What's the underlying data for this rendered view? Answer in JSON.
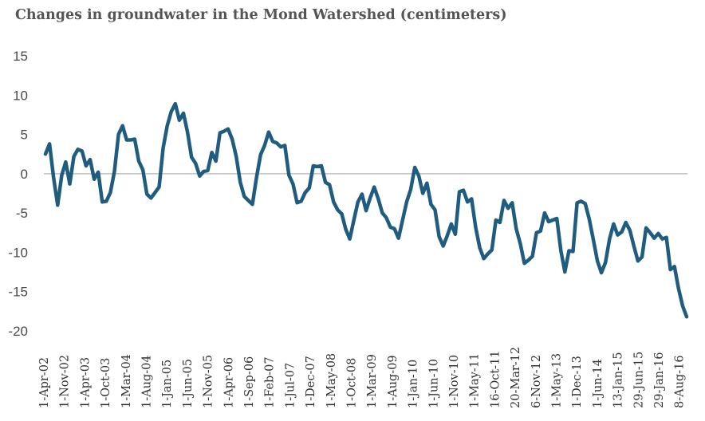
{
  "chart_data": {
    "type": "line",
    "title": "Changes in groundwater in the Mond Watershed (centimeters)",
    "xlabel": "",
    "ylabel": "",
    "ylim": [
      -20,
      15
    ],
    "yticks": [
      15,
      10,
      5,
      0,
      -5,
      -10,
      -15,
      -20
    ],
    "grid": false,
    "legend": "none",
    "colors": {
      "line": "#1f5c7f",
      "zero_line": "#bfbfbf",
      "axis_text": "#4a4a4a",
      "title": "#555555"
    },
    "x_tick_labels": [
      "1-Apr-02",
      "1-Nov-02",
      "1-Apr-03",
      "1-Oct-03",
      "1-Mar-04",
      "1-Aug-04",
      "1-Jan-05",
      "1-Jun-05",
      "1-Nov-05",
      "1-Apr-06",
      "1-Sep-06",
      "1-Feb-07",
      "1-Jul-07",
      "1-Dec-07",
      "1-May-08",
      "1-Oct-08",
      "1-Mar-09",
      "1-Aug-09",
      "1-Jan-10",
      "1-Jun-10",
      "1-Nov-10",
      "1-May-11",
      "16-Oct-11",
      "20-Mar-12",
      "6-Nov-12",
      "1-May-13",
      "1-Dec-13",
      "1-Jun-14",
      "13-Jan-15",
      "29-Jun-15",
      "29-Jan-16",
      "8-Aug-16"
    ],
    "series": [
      {
        "values": [
          2.5,
          3.8,
          -0.5,
          -4.0,
          -0.2,
          1.5,
          -1.3,
          2.2,
          3.1,
          2.9,
          1.0,
          1.8,
          -0.7,
          0.2,
          -3.6,
          -3.5,
          -2.4,
          0.3,
          5.0,
          6.1,
          4.3,
          4.3,
          4.4,
          1.6,
          0.5,
          -2.6,
          -3.1,
          -2.4,
          -1.7,
          3.3,
          6.1,
          7.9,
          8.9,
          6.8,
          7.7,
          5.3,
          2.1,
          1.3,
          -0.3,
          0.3,
          0.4,
          2.7,
          1.6,
          5.2,
          5.4,
          5.7,
          4.4,
          2.2,
          -1.1,
          -2.9,
          -3.4,
          -3.9,
          -0.5,
          2.4,
          3.6,
          5.3,
          4.1,
          3.9,
          3.4,
          3.6,
          -0.2,
          -1.3,
          -3.7,
          -3.5,
          -2.4,
          -1.8,
          1.0,
          0.9,
          1.0,
          -1.1,
          -1.4,
          -3.6,
          -4.6,
          -5.1,
          -7.1,
          -8.3,
          -5.9,
          -3.6,
          -2.6,
          -4.7,
          -3.1,
          -1.7,
          -3.2,
          -5.0,
          -5.6,
          -6.8,
          -7.0,
          -8.2,
          -5.9,
          -3.6,
          -2.0,
          0.8,
          -0.3,
          -2.5,
          -1.2,
          -3.9,
          -4.6,
          -8.0,
          -9.2,
          -7.9,
          -6.4,
          -7.7,
          -2.3,
          -2.1,
          -3.6,
          -3.2,
          -6.8,
          -9.4,
          -10.8,
          -10.2,
          -9.7,
          -5.9,
          -6.2,
          -3.4,
          -4.4,
          -3.7,
          -7.0,
          -8.9,
          -11.4,
          -11.0,
          -10.5,
          -7.5,
          -7.3,
          -5.0,
          -6.1,
          -5.9,
          -5.7,
          -9.8,
          -12.5,
          -9.8,
          -9.9,
          -3.7,
          -3.5,
          -3.8,
          -5.8,
          -8.4,
          -11.1,
          -12.6,
          -11.3,
          -8.3,
          -6.4,
          -7.8,
          -7.4,
          -6.2,
          -7.2,
          -9.2,
          -11.1,
          -10.6,
          -6.9,
          -7.5,
          -8.2,
          -7.6,
          -8.3,
          -8.1,
          -12.2,
          -11.8,
          -14.6,
          -16.8,
          -18.2
        ]
      }
    ]
  }
}
